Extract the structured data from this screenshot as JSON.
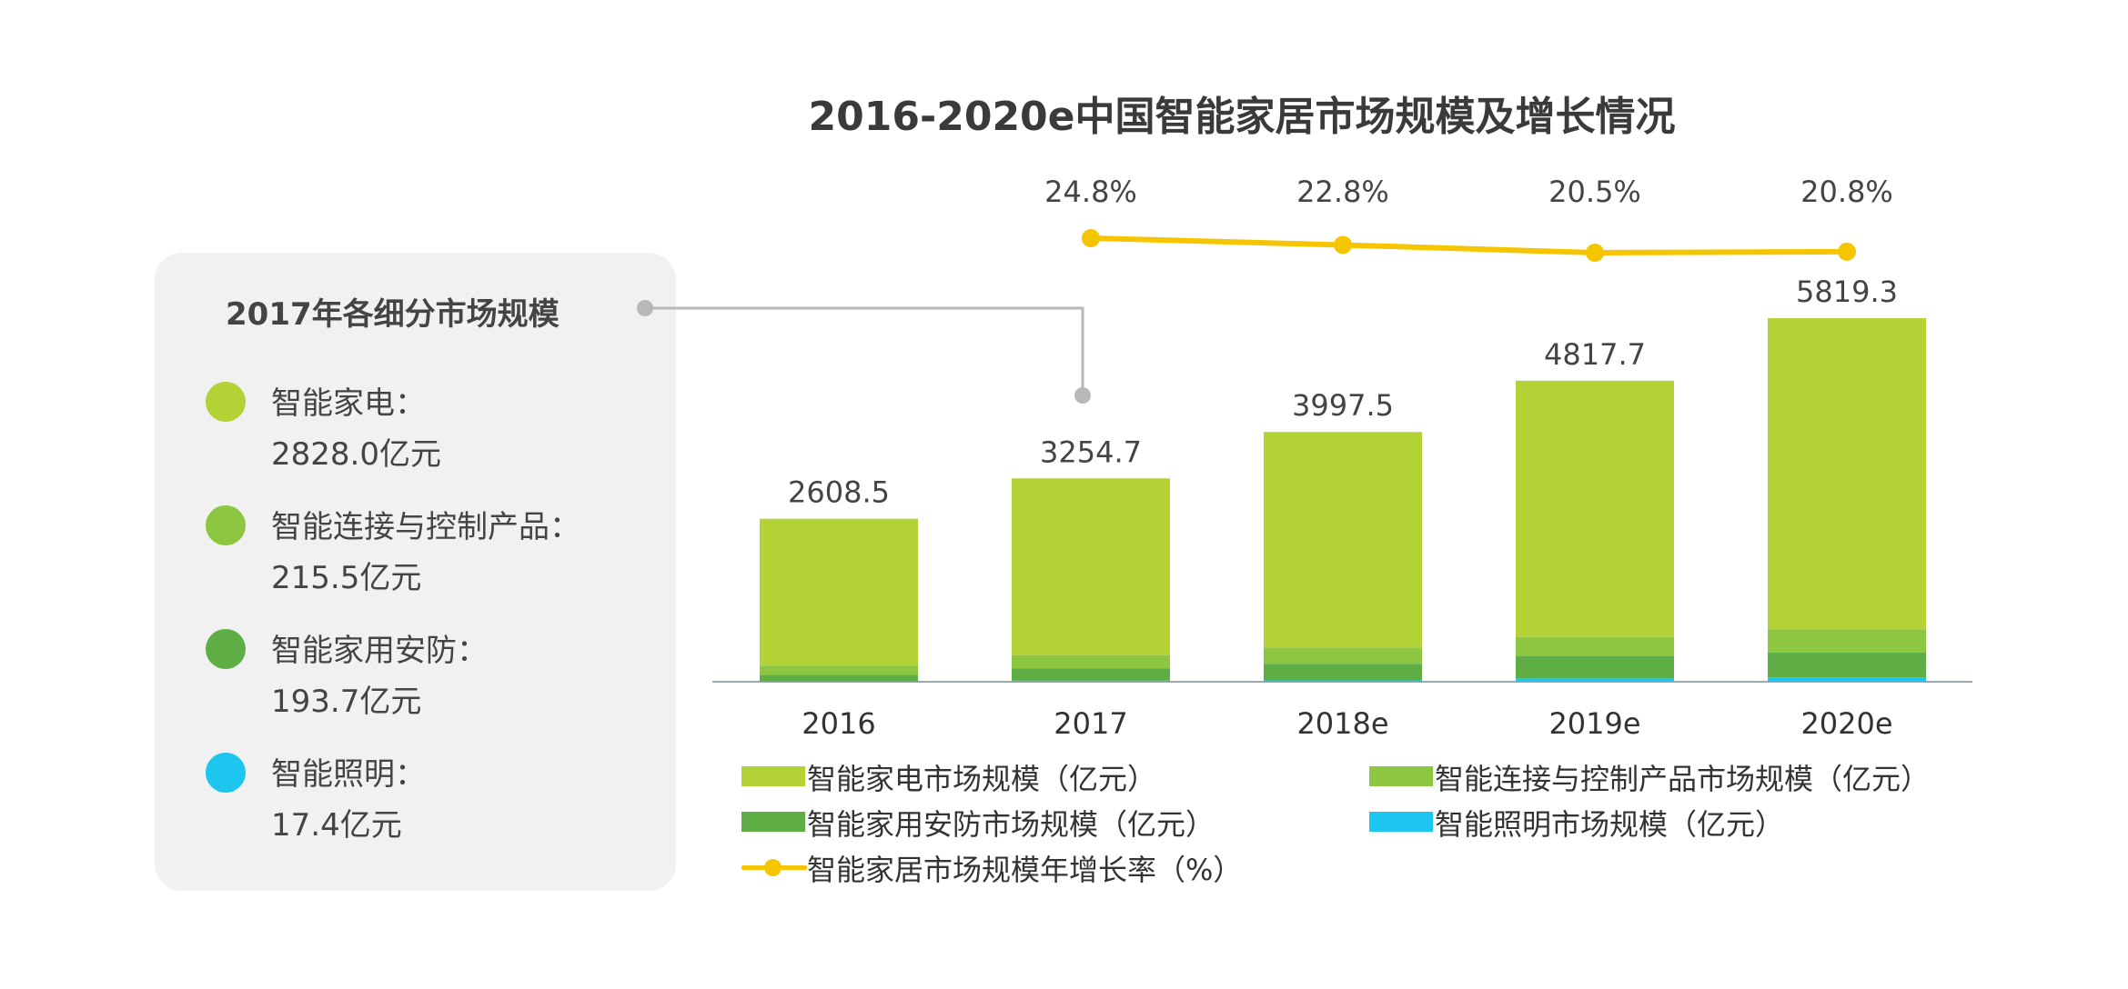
{
  "chart_data": {
    "type": "bar",
    "title": "2016-2020e中国智能家居市场规模及增长情况",
    "categories": [
      "2016",
      "2017",
      "2018e",
      "2019e",
      "2020e"
    ],
    "totals": [
      "2608.5",
      "3254.7",
      "3997.5",
      "4817.7",
      "5819.3"
    ],
    "total_values": [
      2608.5,
      3254.7,
      3997.5,
      4817.7,
      5819.3
    ],
    "series": [
      {
        "name": "智能家电市场规模（亿元）",
        "color": "#b2d235",
        "values": [
          2350.0,
          2828.0,
          3450.0,
          4100.0,
          4980.0
        ]
      },
      {
        "name": "智能连接与控制产品市场规模（亿元）",
        "color": "#8dc641",
        "values": [
          150.0,
          215.5,
          260.0,
          310.0,
          370.0
        ]
      },
      {
        "name": "智能家用安防市场规模（亿元）",
        "color": "#5fae45",
        "values": [
          100.0,
          193.7,
          265.0,
          355.0,
          400.0
        ]
      },
      {
        "name": "智能照明市场规模（亿元）",
        "color": "#1cc6ee",
        "values": [
          8.5,
          17.4,
          22.5,
          52.7,
          69.3
        ]
      }
    ],
    "line": {
      "name": "智能家居市场规模年增长率（%）",
      "color": "#f5c500",
      "categories": [
        "2017",
        "2018e",
        "2019e",
        "2020e"
      ],
      "values": [
        24.8,
        22.8,
        20.5,
        20.8
      ],
      "labels": [
        "24.8%",
        "22.8%",
        "20.5%",
        "20.8%"
      ]
    },
    "legend_position": "bottom",
    "grid": false
  },
  "panel": {
    "title": "2017年各细分市场规模",
    "items": [
      {
        "name": "智能家电：",
        "value": "2828.0亿元",
        "color": "#b2d235"
      },
      {
        "name": "智能连接与控制产品：",
        "value": "215.5亿元",
        "color": "#8dc641"
      },
      {
        "name": "智能家用安防：",
        "value": "193.7亿元",
        "color": "#5fae45"
      },
      {
        "name": "智能照明：",
        "value": "17.4亿元",
        "color": "#1cc6ee"
      }
    ]
  },
  "colors": {
    "axis": "#9aa8b4",
    "connector": "#b8b8b8"
  }
}
